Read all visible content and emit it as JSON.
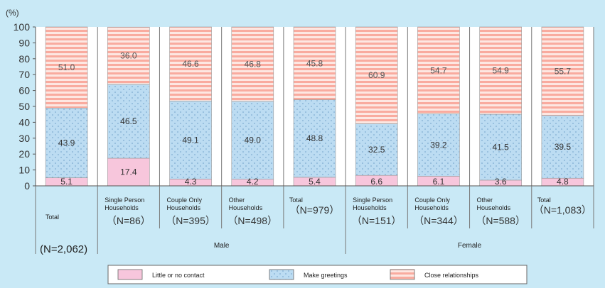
{
  "chart_data": {
    "type": "bar",
    "stacked": true,
    "y_unit": "(%)",
    "ylim": [
      0,
      100
    ],
    "y_ticks": [
      "0",
      "10",
      "20",
      "30",
      "40",
      "50",
      "60",
      "70",
      "80",
      "90",
      "100"
    ],
    "categories": [
      {
        "label": "Total",
        "n": "(N=2,062)"
      },
      {
        "label": "Single Person Households",
        "n": "（N=86）"
      },
      {
        "label": "Couple Only Households",
        "n": "（N=395）"
      },
      {
        "label": "Other Households",
        "n": "（N=498）"
      },
      {
        "label": "Total",
        "n": "（N=979）"
      },
      {
        "label": "Single Person Households",
        "n": "（N=151）"
      },
      {
        "label": "Couple Only Households",
        "n": "（N=344）"
      },
      {
        "label": "Other Households",
        "n": "（N=588）"
      },
      {
        "label": "Total",
        "n": "（N=1,083）"
      }
    ],
    "groups": [
      {
        "label": "Male",
        "categories": [
          1,
          2,
          3,
          4
        ]
      },
      {
        "label": "Female",
        "categories": [
          5,
          6,
          7,
          8
        ]
      }
    ],
    "series": [
      {
        "name": "Little or no contact",
        "color": "#f7c6dc",
        "values": [
          5.1,
          17.4,
          4.3,
          4.2,
          5.4,
          6.6,
          6.1,
          3.6,
          4.8
        ]
      },
      {
        "name": "Make greetings",
        "color": "#bcdcf2",
        "values": [
          43.9,
          46.5,
          49.1,
          49.0,
          48.8,
          32.5,
          39.2,
          41.5,
          39.5
        ]
      },
      {
        "name": "Close relationships",
        "color": "#f9ab9f",
        "values": [
          51.0,
          36.0,
          46.6,
          46.8,
          45.8,
          60.9,
          54.7,
          54.9,
          55.7
        ]
      }
    ],
    "value_labels": [
      [
        "5.1",
        "17.4",
        "4.3",
        "4.2",
        "5.4",
        "6.6",
        "6.1",
        "3.6",
        "4.8"
      ],
      [
        "43.9",
        "46.5",
        "49.1",
        "49.0",
        "48.8",
        "32.5",
        "39.2",
        "41.5",
        "39.5"
      ],
      [
        "51.0",
        "36.0",
        "46.6",
        "46.8",
        "45.8",
        "60.9",
        "54.7",
        "54.9",
        "55.7"
      ]
    ],
    "legend_position": "bottom",
    "grid": false
  }
}
